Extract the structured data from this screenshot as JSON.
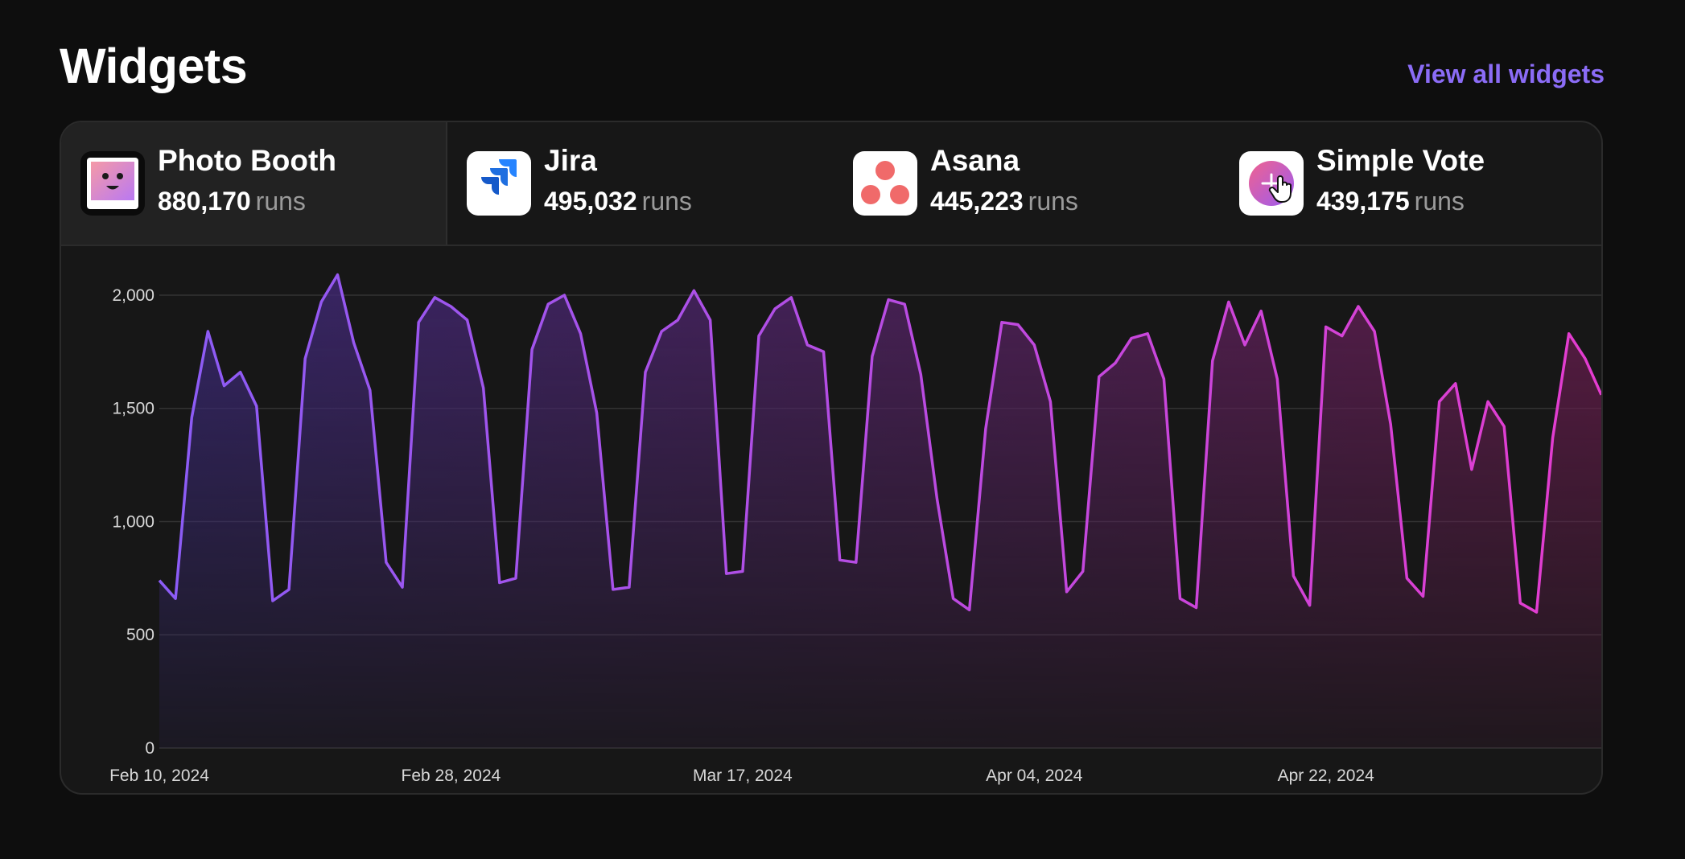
{
  "header": {
    "title": "Widgets",
    "view_all_label": "View all widgets"
  },
  "tabs": [
    {
      "name": "Photo Booth",
      "count": "880,170",
      "unit": "runs",
      "icon": "photo-booth-icon",
      "active": true
    },
    {
      "name": "Jira",
      "count": "495,032",
      "unit": "runs",
      "icon": "jira-icon",
      "active": false
    },
    {
      "name": "Asana",
      "count": "445,223",
      "unit": "runs",
      "icon": "asana-icon",
      "active": false
    },
    {
      "name": "Simple Vote",
      "count": "439,175",
      "unit": "runs",
      "icon": "simple-vote-icon",
      "active": false
    }
  ],
  "colors": {
    "accent": "#8b6cf6",
    "line_start": "#8b5cf6",
    "line_end": "#e43ccf",
    "background": "#0e0e0e",
    "card": "#171717"
  },
  "chart_data": {
    "type": "area",
    "title": "",
    "xlabel": "",
    "ylabel": "",
    "ylim": [
      0,
      2000
    ],
    "y_ticks": [
      "0",
      "500",
      "1,000",
      "1,500",
      "2,000"
    ],
    "x_tick_labels": [
      "Feb 10, 2024",
      "Feb 28, 2024",
      "Mar 17, 2024",
      "Apr 04, 2024",
      "Apr 22, 2024"
    ],
    "x_start": "Feb 10, 2024",
    "x_end": "May 09, 2024",
    "grid": true,
    "series": [
      {
        "name": "Photo Booth",
        "values": [
          740,
          660,
          1460,
          1840,
          1600,
          1660,
          1510,
          650,
          700,
          1720,
          1970,
          2090,
          1790,
          1580,
          820,
          710,
          1880,
          1990,
          1950,
          1890,
          1590,
          730,
          750,
          1760,
          1960,
          2000,
          1830,
          1480,
          700,
          710,
          1660,
          1840,
          1890,
          2020,
          1890,
          770,
          780,
          1820,
          1940,
          1990,
          1780,
          1750,
          830,
          820,
          1730,
          1980,
          1960,
          1650,
          1100,
          660,
          610,
          1410,
          1880,
          1870,
          1780,
          1530,
          690,
          780,
          1640,
          1700,
          1810,
          1830,
          1630,
          660,
          620,
          1710,
          1970,
          1780,
          1930,
          1630,
          760,
          630,
          1860,
          1820,
          1950,
          1840,
          1430,
          750,
          670,
          1530,
          1610,
          1230,
          1530,
          1420,
          640,
          600,
          1370,
          1830,
          1720,
          1560
        ]
      }
    ]
  }
}
